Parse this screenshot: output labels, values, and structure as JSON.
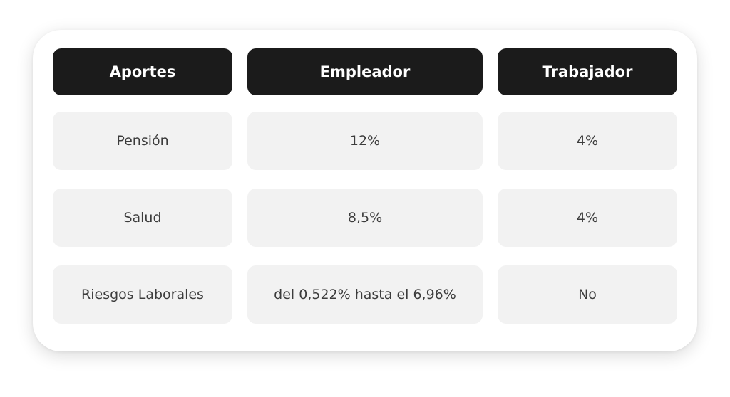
{
  "table": {
    "headers": [
      "Aportes",
      "Empleador",
      "Trabajador"
    ],
    "rows": [
      [
        "Pensión",
        "12%",
        "4%"
      ],
      [
        "Salud",
        "8,5%",
        "4%"
      ],
      [
        "Riesgos Laborales",
        "del 0,522% hasta el 6,96%",
        "No"
      ]
    ]
  }
}
